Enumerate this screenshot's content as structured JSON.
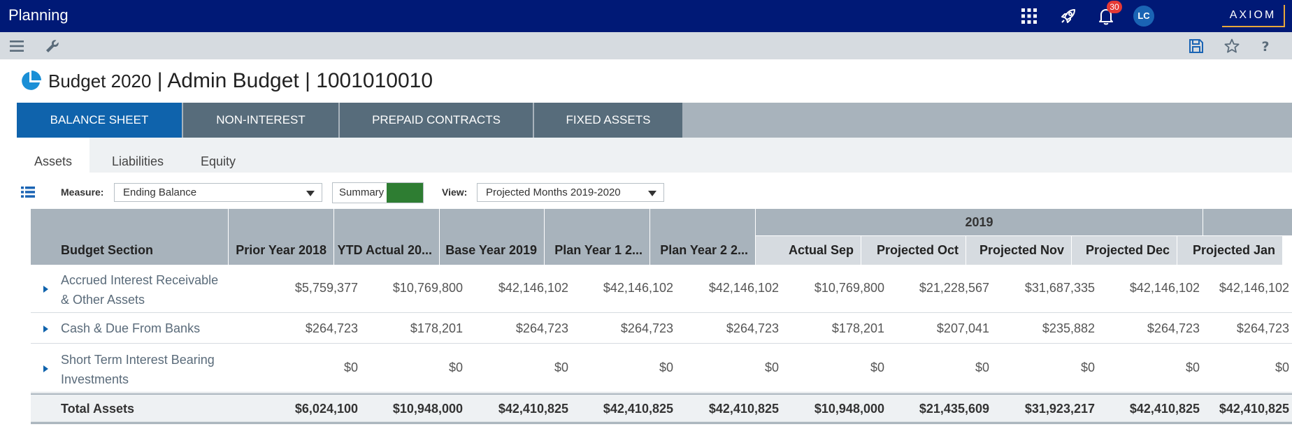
{
  "topbar": {
    "app_title": "Planning",
    "notification_count": "30",
    "user_initials": "LC",
    "brand": "AXIOM"
  },
  "page": {
    "title_main": "Budget 2020",
    "title_rest": " | Admin Budget | 1001010010"
  },
  "main_tabs": [
    {
      "label": "BALANCE SHEET",
      "active": true
    },
    {
      "label": "NON-INTEREST",
      "active": false
    },
    {
      "label": "PREPAID CONTRACTS",
      "active": false
    },
    {
      "label": "FIXED ASSETS",
      "active": false
    }
  ],
  "sub_tabs": [
    {
      "label": "Assets",
      "active": true
    },
    {
      "label": "Liabilities",
      "active": false
    },
    {
      "label": "Equity",
      "active": false
    }
  ],
  "filters": {
    "measure_label": "Measure:",
    "measure_value": "Ending Balance",
    "summary_label": "Summary",
    "view_label": "View:",
    "view_value": "Projected Months 2019-2020"
  },
  "grid": {
    "group_2019": "2019",
    "columns": [
      "Budget Section",
      "Prior Year 2018",
      "YTD Actual 20...",
      "Base Year 2019",
      "Plan Year 1 2...",
      "Plan Year 2 2...",
      "Actual Sep",
      "Projected Oct",
      "Projected Nov",
      "Projected Dec",
      "Projected Jan"
    ],
    "rows": [
      {
        "label_line1": "Accrued Interest Receivable",
        "label_line2": "& Other Assets",
        "values": [
          "$5,759,377",
          "$10,769,800",
          "$42,146,102",
          "$42,146,102",
          "$42,146,102",
          "$10,769,800",
          "$21,228,567",
          "$31,687,335",
          "$42,146,102",
          "$42,146,102"
        ]
      },
      {
        "label_line1": "Cash & Due From Banks",
        "label_line2": "",
        "values": [
          "$264,723",
          "$178,201",
          "$264,723",
          "$264,723",
          "$264,723",
          "$178,201",
          "$207,041",
          "$235,882",
          "$264,723",
          "$264,723"
        ]
      },
      {
        "label_line1": "Short Term Interest Bearing",
        "label_line2": "Investments",
        "values": [
          "$0",
          "$0",
          "$0",
          "$0",
          "$0",
          "$0",
          "$0",
          "$0",
          "$0",
          "$0"
        ]
      }
    ],
    "total": {
      "label": "Total Assets",
      "values": [
        "$6,024,100",
        "$10,948,000",
        "$42,410,825",
        "$42,410,825",
        "$42,410,825",
        "$10,948,000",
        "$21,435,609",
        "$31,923,217",
        "$42,410,825",
        "$42,410,825"
      ]
    }
  },
  "colors": {
    "topbar": "#001976",
    "active_tab": "#0f63ac",
    "inactive_tab": "#576c7b",
    "summary_toggle": "#2e7d32",
    "badge": "#e53935"
  }
}
